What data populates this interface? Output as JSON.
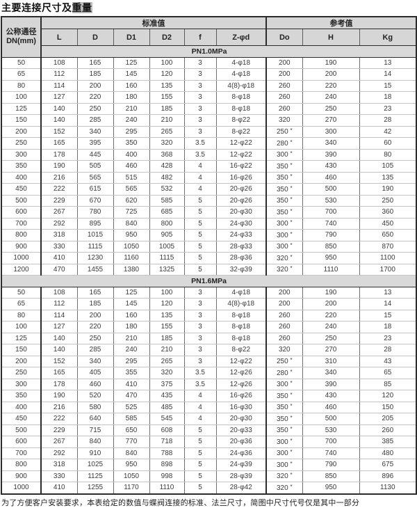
{
  "title": {
    "plain": "主要连接尺寸及",
    "highlight": "重量"
  },
  "table": {
    "corner_header": {
      "line1": "公称通径",
      "line2": "DN(mm)"
    },
    "group_standard": "标准值",
    "group_reference": "参考值",
    "columns": [
      "L",
      "D",
      "D1",
      "D2",
      "f",
      "Z-φd",
      "Do",
      "H",
      "Kg"
    ],
    "sections": [
      {
        "label": "PN1.0MPa",
        "rows": [
          [
            "50",
            "108",
            "165",
            "125",
            "100",
            "3",
            "4-φ18",
            "200",
            "190",
            "13"
          ],
          [
            "65",
            "112",
            "185",
            "145",
            "120",
            "3",
            "4-φ18",
            "200",
            "200",
            "14"
          ],
          [
            "80",
            "114",
            "200",
            "160",
            "135",
            "3",
            "4(8)-φ18",
            "260",
            "220",
            "15"
          ],
          [
            "100",
            "127",
            "220",
            "180",
            "155",
            "3",
            "8-φ18",
            "260",
            "240",
            "18"
          ],
          [
            "125",
            "140",
            "250",
            "210",
            "185",
            "3",
            "8-φ18",
            "260",
            "250",
            "23"
          ],
          [
            "150",
            "140",
            "285",
            "240",
            "210",
            "3",
            "8-φ22",
            "320",
            "270",
            "28"
          ],
          [
            "200",
            "152",
            "340",
            "295",
            "265",
            "3",
            "8-φ22",
            "250 *",
            "300",
            "42"
          ],
          [
            "250",
            "165",
            "395",
            "350",
            "320",
            "3.5",
            "12-φ22",
            "280 *",
            "340",
            "60"
          ],
          [
            "300",
            "178",
            "445",
            "400",
            "368",
            "3.5",
            "12-φ22",
            "300 *",
            "390",
            "80"
          ],
          [
            "350",
            "190",
            "505",
            "460",
            "428",
            "4",
            "16-φ22",
            "350 *",
            "430",
            "105"
          ],
          [
            "400",
            "216",
            "565",
            "515",
            "482",
            "4",
            "16-φ26",
            "350 *",
            "460",
            "135"
          ],
          [
            "450",
            "222",
            "615",
            "565",
            "532",
            "4",
            "20-φ26",
            "350 *",
            "500",
            "190"
          ],
          [
            "500",
            "229",
            "670",
            "620",
            "585",
            "5",
            "20-φ26",
            "350 *",
            "530",
            "250"
          ],
          [
            "600",
            "267",
            "780",
            "725",
            "685",
            "5",
            "20-φ30",
            "350 *",
            "700",
            "360"
          ],
          [
            "700",
            "292",
            "895",
            "840",
            "800",
            "5",
            "24-φ30",
            "300 *",
            "740",
            "450"
          ],
          [
            "800",
            "318",
            "1015",
            "950",
            "905",
            "5",
            "24-φ33",
            "300 *",
            "790",
            "650"
          ],
          [
            "900",
            "330",
            "1115",
            "1050",
            "1005",
            "5",
            "28-φ33",
            "300 *",
            "850",
            "870"
          ],
          [
            "1000",
            "410",
            "1230",
            "1160",
            "1115",
            "5",
            "28-φ36",
            "320 *",
            "950",
            "1100"
          ],
          [
            "1200",
            "470",
            "1455",
            "1380",
            "1325",
            "5",
            "32-φ39",
            "320 *",
            "1110",
            "1700"
          ]
        ]
      },
      {
        "label": "PN1.6MPa",
        "rows": [
          [
            "50",
            "108",
            "165",
            "125",
            "100",
            "3",
            "4-φ18",
            "200",
            "190",
            "13"
          ],
          [
            "65",
            "112",
            "185",
            "145",
            "120",
            "3",
            "4(8)-φ18",
            "200",
            "200",
            "14"
          ],
          [
            "80",
            "114",
            "200",
            "160",
            "135",
            "3",
            "8-φ18",
            "260",
            "220",
            "15"
          ],
          [
            "100",
            "127",
            "220",
            "180",
            "155",
            "3",
            "8-φ18",
            "260",
            "240",
            "18"
          ],
          [
            "125",
            "140",
            "250",
            "210",
            "185",
            "3",
            "8-φ18",
            "260",
            "250",
            "23"
          ],
          [
            "150",
            "140",
            "285",
            "240",
            "210",
            "3",
            "8-φ22",
            "320",
            "270",
            "28"
          ],
          [
            "200",
            "152",
            "340",
            "295",
            "265",
            "3",
            "12-φ22",
            "250 *",
            "310",
            "43"
          ],
          [
            "250",
            "165",
            "405",
            "355",
            "320",
            "3.5",
            "12-φ26",
            "280 *",
            "340",
            "65"
          ],
          [
            "300",
            "178",
            "460",
            "410",
            "375",
            "3.5",
            "12-φ26",
            "300 *",
            "390",
            "85"
          ],
          [
            "350",
            "190",
            "520",
            "470",
            "435",
            "4",
            "16-φ26",
            "350 *",
            "430",
            "120"
          ],
          [
            "400",
            "216",
            "580",
            "525",
            "485",
            "4",
            "16-φ30",
            "350 *",
            "460",
            "150"
          ],
          [
            "450",
            "222",
            "640",
            "585",
            "545",
            "4",
            "20-φ30",
            "350 *",
            "500",
            "205"
          ],
          [
            "500",
            "229",
            "715",
            "650",
            "608",
            "5",
            "20-φ33",
            "350 *",
            "530",
            "260"
          ],
          [
            "600",
            "267",
            "840",
            "770",
            "718",
            "5",
            "20-φ36",
            "300 *",
            "700",
            "385"
          ],
          [
            "700",
            "292",
            "910",
            "840",
            "788",
            "5",
            "24-φ36",
            "300 *",
            "740",
            "480"
          ],
          [
            "800",
            "318",
            "1025",
            "950",
            "898",
            "5",
            "24-φ39",
            "300 *",
            "790",
            "675"
          ],
          [
            "900",
            "330",
            "1125",
            "1050",
            "998",
            "5",
            "28-φ39",
            "320 *",
            "850",
            "896"
          ],
          [
            "1000",
            "410",
            "1255",
            "1170",
            "1110",
            "5",
            "28-φ42",
            "320 *",
            "950",
            "1130"
          ]
        ]
      }
    ]
  },
  "footer": "为了方便客户安装要求，本表给定的数值与蝶阀连接的标准、法兰尺寸，简图中尺寸代号仅是其中一部分",
  "colors": {
    "header_bg": "#d6d6d6",
    "band_bg": "#d9d9d9",
    "title_highlight": "#bdbdbd",
    "outer_border": "#2b2b2b"
  }
}
